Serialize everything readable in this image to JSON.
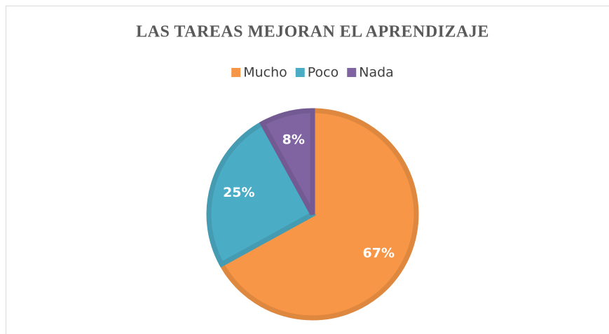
{
  "chart_data": {
    "type": "pie",
    "title": "LAS TAREAS MEJORAN EL APRENDIZAJE",
    "categories": [
      "Mucho",
      "Poco",
      "Nada"
    ],
    "values": [
      67,
      25,
      8
    ],
    "value_labels": [
      "67%",
      "25%",
      "8%"
    ],
    "colors": [
      "#f79646",
      "#4bacc6",
      "#8064a2"
    ],
    "legend": "top"
  }
}
